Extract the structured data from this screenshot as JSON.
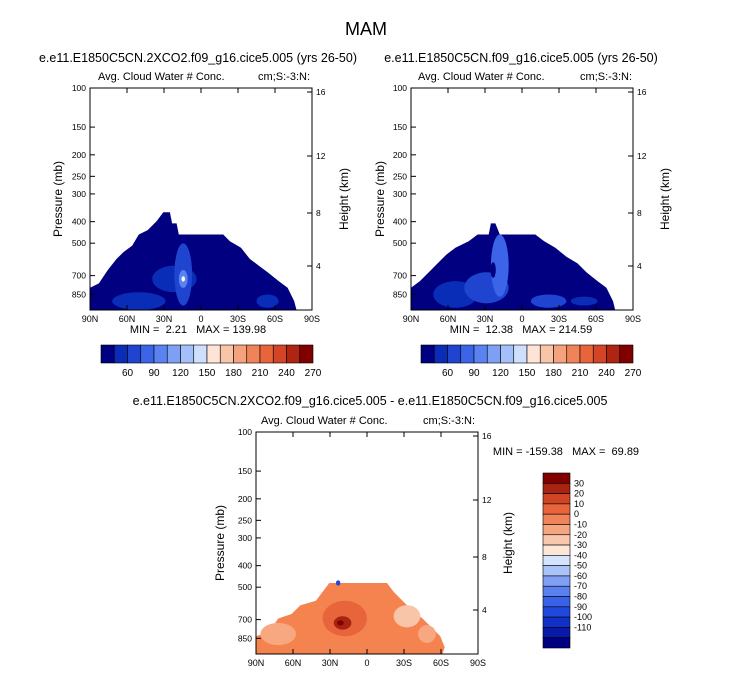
{
  "figure": {
    "title": "MAM"
  },
  "colors": {
    "model_scale": [
      "#000080",
      "#0a2db8",
      "#1f45d0",
      "#3c64e8",
      "#5a82f0",
      "#7da0f5",
      "#a4c0f9",
      "#cfe0fc",
      "#fde4d4",
      "#f9c5a8",
      "#f5a37e",
      "#f08358",
      "#e8643b",
      "#d44427",
      "#b02414",
      "#800000"
    ],
    "diff_scale": [
      "#000080",
      "#0a1aa8",
      "#1030c8",
      "#2048dc",
      "#3a62e8",
      "#5a80f0",
      "#80a0f5",
      "#aac4fa",
      "#d4e4fd",
      "#fde6d6",
      "#f9c8ac",
      "#f5a680",
      "#f08458",
      "#e8643a",
      "#d04424",
      "#a82410",
      "#800000"
    ],
    "panel_background": "#ffffff"
  },
  "chart_data": [
    {
      "type": "heatmap",
      "title": "e.e11.E1850C5CN.2XCO2.f09_g16.cice5.005 (yrs 26-50)",
      "subtitle_left": "Avg. Cloud Water # Conc.",
      "subtitle_right": "cm;S:-3:N:",
      "ylabel": "Pressure (mb)",
      "ylabel_right": "Height (km)",
      "x_ticks": [
        "90N",
        "60N",
        "30N",
        "0",
        "30S",
        "60S",
        "90S"
      ],
      "y_ticks": [
        "100",
        "150",
        "200",
        "250",
        "300",
        "400",
        "500",
        "700",
        "850"
      ],
      "y_ticks_right": [
        "16",
        "12",
        "8",
        "4"
      ],
      "stats": "MIN =  2.21   MAX = 139.98",
      "colorbar_labels": [
        "60",
        "90",
        "120",
        "150",
        "180",
        "210",
        "240",
        "270"
      ],
      "levels": [
        40,
        50,
        60,
        70,
        80,
        90,
        100,
        110,
        120,
        130,
        140,
        150,
        160,
        170,
        180,
        190,
        200,
        210,
        220,
        230,
        240,
        250,
        260,
        270,
        280
      ],
      "min": 2.21,
      "max": 139.98
    },
    {
      "type": "heatmap",
      "title": "e.e11.E1850C5CN.f09_g16.cice5.005 (yrs 26-50)",
      "subtitle_left": "Avg. Cloud Water # Conc.",
      "subtitle_right": "cm;S:-3:N:",
      "ylabel": "Pressure (mb)",
      "ylabel_right": "Height (km)",
      "x_ticks": [
        "90N",
        "60N",
        "30N",
        "0",
        "30S",
        "60S",
        "90S"
      ],
      "y_ticks": [
        "100",
        "150",
        "200",
        "250",
        "300",
        "400",
        "500",
        "700",
        "850"
      ],
      "y_ticks_right": [
        "16",
        "12",
        "8",
        "4"
      ],
      "stats": "MIN =  12.38   MAX = 214.59",
      "colorbar_labels": [
        "60",
        "90",
        "120",
        "150",
        "180",
        "210",
        "240",
        "270"
      ],
      "min": 12.38,
      "max": 214.59
    },
    {
      "type": "heatmap",
      "title": "e.e11.E1850C5CN.2XCO2.f09_g16.cice5.005 - e.e11.E1850C5CN.f09_g16.cice5.005",
      "subtitle_left": "Avg. Cloud Water # Conc.",
      "subtitle_right": "cm;S:-3:N:",
      "ylabel": "Pressure (mb)",
      "ylabel_right": "Height (km)",
      "x_ticks": [
        "90N",
        "60N",
        "30N",
        "0",
        "30S",
        "60S",
        "90S"
      ],
      "y_ticks": [
        "100",
        "150",
        "200",
        "250",
        "300",
        "400",
        "500",
        "700",
        "850"
      ],
      "y_ticks_right": [
        "16",
        "12",
        "8",
        "4"
      ],
      "stats": "MIN = -159.38   MAX =  69.89",
      "colorbar_labels": [
        "30",
        "20",
        "10",
        "0",
        "-10",
        "-20",
        "-30",
        "-40",
        "-50",
        "-60",
        "-70",
        "-80",
        "-90",
        "-100",
        "-110"
      ],
      "min": -159.38,
      "max": 69.89
    }
  ]
}
